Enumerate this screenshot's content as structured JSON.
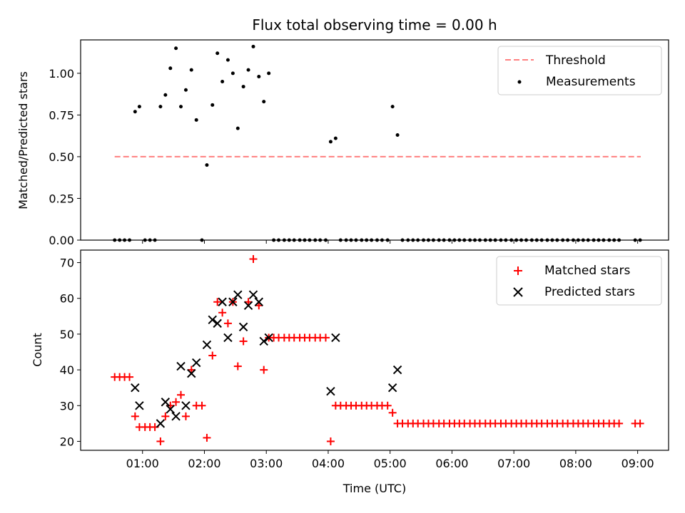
{
  "figure": {
    "title": "Flux total observing time = 0.00 h",
    "xlabel": "Time (UTC)"
  },
  "chart_data": [
    {
      "type": "scatter",
      "ylabel": "Matched/Predicted stars",
      "xlim": [
        0.0,
        9.5
      ],
      "ylim": [
        0.0,
        1.2
      ],
      "yticks": [
        0.0,
        0.25,
        0.5,
        0.75,
        1.0
      ],
      "ytick_labels": [
        "0.00",
        "0.25",
        "0.50",
        "0.75",
        "1.00"
      ],
      "xticks": [
        1,
        2,
        3,
        4,
        5,
        6,
        7,
        8,
        9
      ],
      "grid": false,
      "legend": "top-right",
      "series": [
        {
          "name": "Threshold",
          "kind": "dashed-line",
          "color": "#ff7f7f",
          "x": [
            0.55,
            9.05
          ],
          "y": [
            0.5,
            0.5
          ]
        },
        {
          "name": "Measurements",
          "kind": "dots",
          "color": "#000000",
          "x": [
            0.55,
            0.63,
            0.71,
            0.79,
            0.88,
            0.95,
            1.04,
            1.12,
            1.2,
            1.29,
            1.37,
            1.45,
            1.54,
            1.62,
            1.7,
            1.79,
            1.87,
            1.96,
            2.04,
            2.13,
            2.21,
            2.29,
            2.38,
            2.46,
            2.54,
            2.63,
            2.71,
            2.79,
            2.88,
            2.96,
            3.04,
            3.12,
            3.2,
            3.29,
            3.37,
            3.45,
            3.54,
            3.62,
            3.7,
            3.79,
            3.87,
            3.96,
            4.04,
            4.12,
            4.2,
            4.29,
            4.37,
            4.45,
            4.54,
            4.62,
            4.7,
            4.79,
            4.87,
            4.96,
            5.04,
            5.12,
            5.2,
            5.29,
            5.37,
            5.45,
            5.54,
            5.62,
            5.7,
            5.79,
            5.87,
            5.96,
            6.04,
            6.12,
            6.2,
            6.29,
            6.37,
            6.45,
            6.54,
            6.62,
            6.7,
            6.79,
            6.87,
            6.96,
            7.04,
            7.12,
            7.2,
            7.29,
            7.37,
            7.45,
            7.54,
            7.62,
            7.7,
            7.79,
            7.87,
            7.96,
            8.04,
            8.12,
            8.2,
            8.29,
            8.37,
            8.45,
            8.54,
            8.62,
            8.7,
            8.96,
            9.04
          ],
          "y": [
            0,
            0,
            0,
            0,
            0.77,
            0.8,
            0,
            0,
            0,
            0.8,
            0.87,
            1.03,
            1.15,
            0.8,
            0.9,
            1.02,
            0.72,
            0,
            0.45,
            0.81,
            1.12,
            0.95,
            1.08,
            1.0,
            0.67,
            0.92,
            1.02,
            1.16,
            0.98,
            0.83,
            1.0,
            0,
            0,
            0,
            0,
            0,
            0,
            0,
            0,
            0,
            0,
            0,
            0.59,
            0.61,
            0,
            0,
            0,
            0,
            0,
            0,
            0,
            0,
            0,
            0,
            0.8,
            0.63,
            0,
            0,
            0,
            0,
            0,
            0,
            0,
            0,
            0,
            0,
            0,
            0,
            0,
            0,
            0,
            0,
            0,
            0,
            0,
            0,
            0,
            0,
            0,
            0,
            0,
            0,
            0,
            0,
            0,
            0,
            0,
            0,
            0,
            0,
            0,
            0,
            0,
            0,
            0,
            0,
            0,
            0,
            0,
            0,
            0
          ]
        }
      ]
    },
    {
      "type": "scatter",
      "ylabel": "Count",
      "xlim": [
        0.0,
        9.5
      ],
      "ylim": [
        17.5,
        73.5
      ],
      "yticks": [
        20,
        30,
        40,
        50,
        60,
        70
      ],
      "ytick_labels": [
        "20",
        "30",
        "40",
        "50",
        "60",
        "70"
      ],
      "xticks": [
        1,
        2,
        3,
        4,
        5,
        6,
        7,
        8,
        9
      ],
      "xtick_labels": [
        "01:00",
        "02:00",
        "03:00",
        "04:00",
        "05:00",
        "06:00",
        "07:00",
        "08:00",
        "09:00"
      ],
      "grid": false,
      "legend": "top-right",
      "series": [
        {
          "name": "Matched stars",
          "kind": "plus",
          "color": "#ff0000",
          "x": [
            0.55,
            0.63,
            0.71,
            0.79,
            0.88,
            0.95,
            1.04,
            1.12,
            1.2,
            1.29,
            1.37,
            1.45,
            1.54,
            1.62,
            1.7,
            1.79,
            1.87,
            1.96,
            2.04,
            2.13,
            2.21,
            2.29,
            2.38,
            2.46,
            2.54,
            2.63,
            2.71,
            2.79,
            2.88,
            2.96,
            3.04,
            3.12,
            3.2,
            3.29,
            3.37,
            3.45,
            3.54,
            3.62,
            3.7,
            3.79,
            3.87,
            3.96,
            4.04,
            4.12,
            4.2,
            4.29,
            4.37,
            4.45,
            4.54,
            4.62,
            4.7,
            4.79,
            4.87,
            4.96,
            5.04,
            5.12,
            5.2,
            5.29,
            5.37,
            5.45,
            5.54,
            5.62,
            5.7,
            5.79,
            5.87,
            5.96,
            6.04,
            6.12,
            6.2,
            6.29,
            6.37,
            6.45,
            6.54,
            6.62,
            6.7,
            6.79,
            6.87,
            6.96,
            7.04,
            7.12,
            7.2,
            7.29,
            7.37,
            7.45,
            7.54,
            7.62,
            7.7,
            7.79,
            7.87,
            7.96,
            8.04,
            8.12,
            8.2,
            8.29,
            8.37,
            8.45,
            8.54,
            8.62,
            8.7,
            8.96,
            9.04
          ],
          "y": [
            38,
            38,
            38,
            38,
            27,
            24,
            24,
            24,
            24,
            20,
            27,
            30,
            31,
            33,
            27,
            40,
            30,
            30,
            21,
            44,
            59,
            56,
            53,
            59,
            41,
            48,
            59,
            71,
            58,
            40,
            49,
            49,
            49,
            49,
            49,
            49,
            49,
            49,
            49,
            49,
            49,
            49,
            20,
            30,
            30,
            30,
            30,
            30,
            30,
            30,
            30,
            30,
            30,
            30,
            28,
            25,
            25,
            25,
            25,
            25,
            25,
            25,
            25,
            25,
            25,
            25,
            25,
            25,
            25,
            25,
            25,
            25,
            25,
            25,
            25,
            25,
            25,
            25,
            25,
            25,
            25,
            25,
            25,
            25,
            25,
            25,
            25,
            25,
            25,
            25,
            25,
            25,
            25,
            25,
            25,
            25,
            25,
            25,
            25,
            25,
            25
          ]
        },
        {
          "name": "Predicted stars",
          "kind": "x",
          "color": "#000000",
          "x": [
            0.88,
            0.95,
            1.29,
            1.37,
            1.45,
            1.54,
            1.62,
            1.7,
            1.79,
            1.87,
            2.04,
            2.13,
            2.21,
            2.29,
            2.38,
            2.46,
            2.54,
            2.63,
            2.71,
            2.79,
            2.88,
            2.96,
            3.04,
            4.04,
            4.12,
            5.04,
            5.12
          ],
          "y": [
            35,
            30,
            25,
            31,
            29,
            27,
            41,
            30,
            39,
            42,
            47,
            54,
            53,
            59,
            49,
            59,
            61,
            52,
            58,
            61,
            59,
            48,
            49,
            34,
            49,
            35,
            40
          ]
        }
      ]
    }
  ]
}
